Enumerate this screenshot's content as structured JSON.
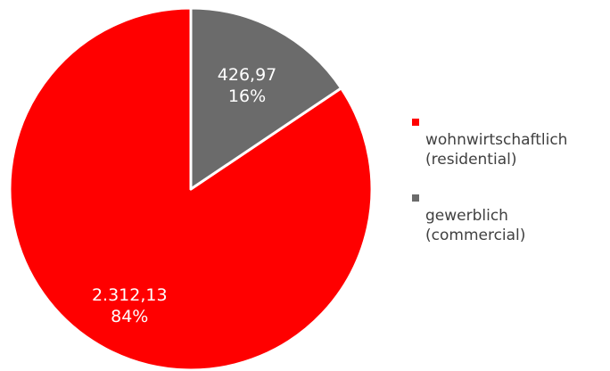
{
  "chart_data": {
    "type": "pie",
    "start_angle": "12 o'clock",
    "direction": "counterclockwise",
    "slices": [
      {
        "name_line1": "wohnwirtschaftlich",
        "name_line2": "(residential)",
        "value": 2312.13,
        "value_label": "2.312,13",
        "percent_label": "84%",
        "color": "#FF0000"
      },
      {
        "name_line1": "gewerblich",
        "name_line2": "(commercial)",
        "value": 426.97,
        "value_label": "426,97",
        "percent_label": "16%",
        "color": "#6B6B6B"
      }
    ],
    "legend_position": "right"
  }
}
